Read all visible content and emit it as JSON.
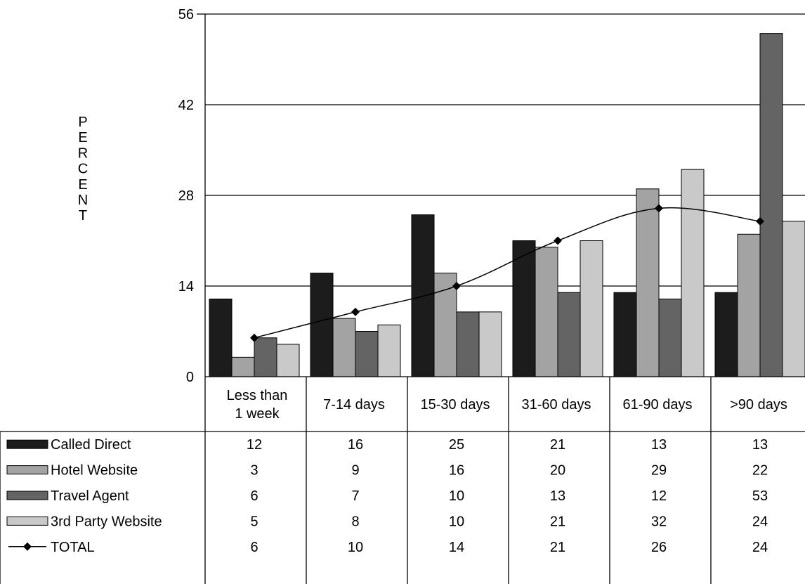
{
  "chart_data": {
    "type": "bar",
    "ylabel": "PERCENT",
    "ylim": [
      0,
      56
    ],
    "yticks": [
      "0",
      "14",
      "28",
      "42",
      "56"
    ],
    "grid": true,
    "legend": "data table",
    "categories": [
      "Less than 1 week",
      "7-14 days",
      "15-30 days",
      "31-60 days",
      "61-90 days",
      ">90 days"
    ],
    "category_lines": [
      [
        "Less than",
        "1 week"
      ],
      [
        "7-14 days"
      ],
      [
        "15-30 days"
      ],
      [
        "31-60 days"
      ],
      [
        "61-90 days"
      ],
      [
        ">90 days"
      ]
    ],
    "series": [
      {
        "name": "Called Direct",
        "type": "bar",
        "color": "#1c1c1c",
        "values": [
          12,
          16,
          25,
          21,
          13,
          13
        ]
      },
      {
        "name": "Hotel Website",
        "type": "bar",
        "color": "#a3a3a3",
        "values": [
          3,
          9,
          16,
          20,
          29,
          22
        ]
      },
      {
        "name": "Travel Agent",
        "type": "bar",
        "color": "#646464",
        "values": [
          6,
          7,
          10,
          13,
          12,
          53
        ]
      },
      {
        "name": "3rd Party Website",
        "type": "bar",
        "color": "#c9c9c9",
        "values": [
          5,
          8,
          10,
          21,
          32,
          24
        ]
      },
      {
        "name": "TOTAL",
        "type": "line",
        "color": "#000000",
        "values": [
          6,
          10,
          14,
          21,
          26,
          24
        ]
      }
    ]
  }
}
